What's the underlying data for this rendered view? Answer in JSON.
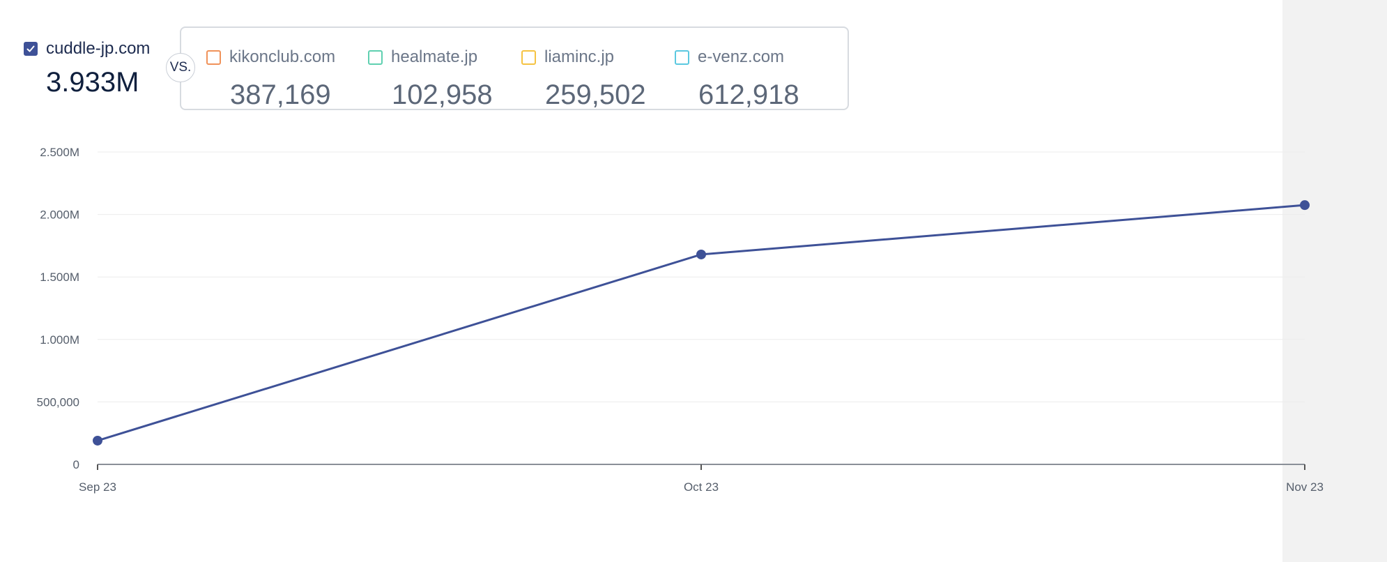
{
  "primary": {
    "label": "cuddle-jp.com",
    "value": "3.933M",
    "checked": true,
    "color": "#3e5197"
  },
  "vs_label": "VS.",
  "competitors": [
    {
      "label": "kikonclub.com",
      "value": "387,169",
      "color": "#f0925a"
    },
    {
      "label": "healmate.jp",
      "value": "102,958",
      "color": "#5fd0b0"
    },
    {
      "label": "liaminc.jp",
      "value": "259,502",
      "color": "#f5c342"
    },
    {
      "label": "e-venz.com",
      "value": "612,918",
      "color": "#5bc8e0"
    }
  ],
  "chart_data": {
    "type": "line",
    "x": [
      "Sep 23",
      "Oct 23",
      "Nov 23"
    ],
    "series": [
      {
        "values": [
          190000,
          1680000,
          2075000
        ],
        "color": "#3e5197"
      }
    ],
    "yticks": [
      0,
      500000,
      1000000,
      1500000,
      2000000,
      2500000
    ],
    "ytick_labels": [
      "0",
      "500,000",
      "1.000M",
      "1.500M",
      "2.000M",
      "2.500M"
    ],
    "ylim": [
      0,
      2500000
    ],
    "grid": true,
    "title": "",
    "xlabel": "",
    "ylabel": ""
  }
}
